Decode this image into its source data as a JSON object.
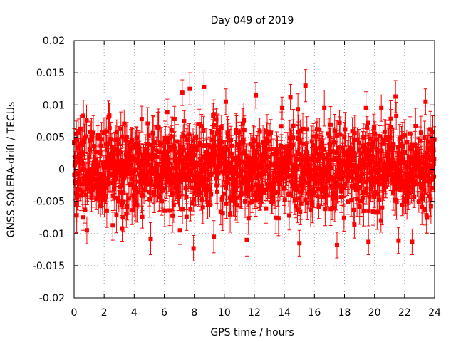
{
  "chart_data": {
    "type": "scatter",
    "title": "Day 049 of 2019",
    "xlabel": "GPS time / hours",
    "ylabel": "GNSS SOLERA-drift / TECUs",
    "xlim": [
      0,
      24
    ],
    "ylim": [
      -0.02,
      0.02
    ],
    "xticks": [
      0,
      2,
      4,
      6,
      8,
      10,
      12,
      14,
      16,
      18,
      20,
      22,
      24
    ],
    "yticks": [
      -0.02,
      -0.015,
      -0.01,
      -0.005,
      0,
      0.005,
      0.01,
      0.015,
      0.02
    ],
    "ytick_labels": [
      "-0.02",
      "-0.015",
      "-0.01",
      "-0.005",
      "0",
      "0.005",
      "0.01",
      "0.015",
      "0.02"
    ],
    "grid": true,
    "series": [
      {
        "color": "#ff0000",
        "marker": "square",
        "error_bars": true,
        "sample_points": [
          {
            "x": 0.15,
            "y": 0.0055,
            "err": 0.002
          },
          {
            "x": 0.6,
            "y": -0.0075,
            "err": 0.002
          },
          {
            "x": 2.3,
            "y": 0.0081,
            "err": 0.0025
          },
          {
            "x": 3.2,
            "y": -0.0092,
            "err": 0.002
          },
          {
            "x": 4.5,
            "y": 0.0078,
            "err": 0.002
          },
          {
            "x": 5.1,
            "y": -0.0108,
            "err": 0.0025
          },
          {
            "x": 6.2,
            "y": 0.0089,
            "err": 0.002
          },
          {
            "x": 7.2,
            "y": 0.0119,
            "err": 0.002
          },
          {
            "x": 7.7,
            "y": 0.0125,
            "err": 0.0025
          },
          {
            "x": 7.95,
            "y": -0.0123,
            "err": 0.002
          },
          {
            "x": 8.65,
            "y": 0.0128,
            "err": 0.0025
          },
          {
            "x": 9.3,
            "y": -0.0105,
            "err": 0.0025
          },
          {
            "x": 10.1,
            "y": 0.0105,
            "err": 0.002
          },
          {
            "x": 11.5,
            "y": -0.011,
            "err": 0.0025
          },
          {
            "x": 12.1,
            "y": 0.0115,
            "err": 0.002
          },
          {
            "x": 14.4,
            "y": 0.0112,
            "err": 0.002
          },
          {
            "x": 15.0,
            "y": -0.0115,
            "err": 0.002
          },
          {
            "x": 15.4,
            "y": 0.013,
            "err": 0.0025
          },
          {
            "x": 17.5,
            "y": -0.0118,
            "err": 0.002
          },
          {
            "x": 19.6,
            "y": -0.0113,
            "err": 0.002
          },
          {
            "x": 21.4,
            "y": 0.0113,
            "err": 0.0025
          },
          {
            "x": 21.6,
            "y": -0.0111,
            "err": 0.002
          },
          {
            "x": 22.5,
            "y": -0.0113,
            "err": 0.002
          },
          {
            "x": 23.4,
            "y": 0.0105,
            "err": 0.002
          }
        ],
        "bulk_distribution": {
          "x_start": 0,
          "x_end": 24,
          "mean": 0.0,
          "std": 0.0033
        }
      }
    ]
  }
}
